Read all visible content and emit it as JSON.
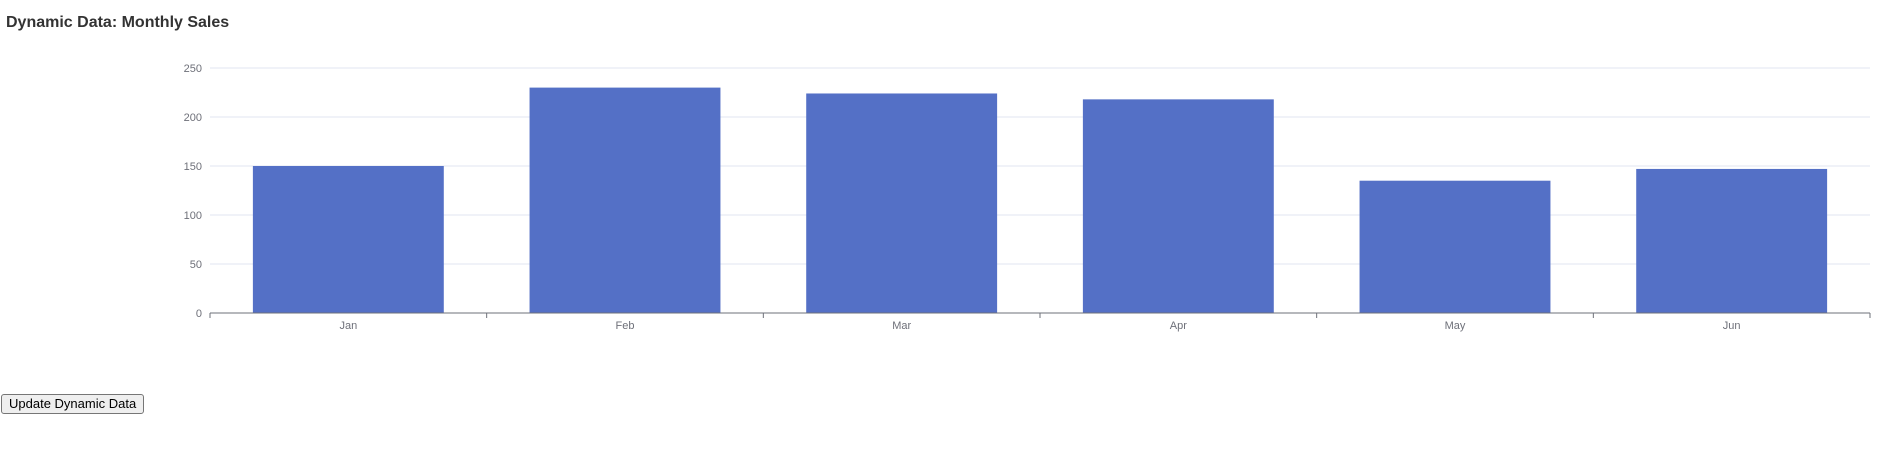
{
  "page": {
    "title": "Dynamic Data: Monthly Sales"
  },
  "controls": {
    "update_label": "Update Dynamic Data"
  },
  "colors": {
    "bar": "#5470c6",
    "grid": "#e0e6f1",
    "axis": "#6e7079"
  },
  "chart_data": {
    "type": "bar",
    "title": "",
    "xlabel": "",
    "ylabel": "",
    "categories": [
      "Jan",
      "Feb",
      "Mar",
      "Apr",
      "May",
      "Jun"
    ],
    "values": [
      150,
      230,
      224,
      218,
      135,
      147
    ],
    "ylim": [
      0,
      250
    ],
    "yticks": [
      0,
      50,
      100,
      150,
      200,
      250
    ],
    "grid": true,
    "legend": "none"
  }
}
